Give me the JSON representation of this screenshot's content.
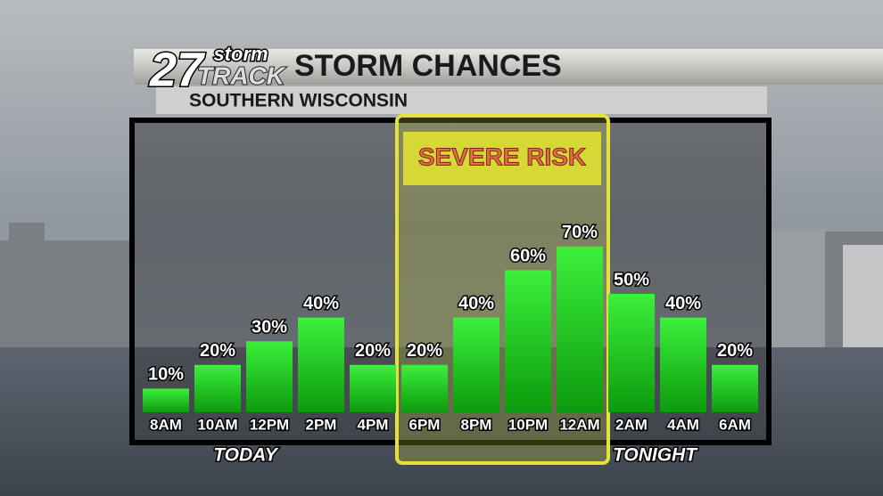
{
  "chart_data": {
    "type": "bar",
    "title": "STORM CHANCES",
    "subtitle": "SOUTHERN WISCONSIN",
    "logo": {
      "number": "27",
      "top": "storm",
      "bottom": "TRACK"
    },
    "categories": [
      "8AM",
      "10AM",
      "12PM",
      "2PM",
      "4PM",
      "6PM",
      "8PM",
      "10PM",
      "12AM",
      "2AM",
      "4AM",
      "6AM"
    ],
    "values": [
      10,
      20,
      30,
      40,
      20,
      20,
      40,
      60,
      70,
      50,
      40,
      20
    ],
    "value_labels": [
      "10%",
      "20%",
      "30%",
      "40%",
      "20%",
      "20%",
      "40%",
      "60%",
      "70%",
      "50%",
      "40%",
      "20%"
    ],
    "color": "#1fd01f",
    "ylim": [
      0,
      100
    ],
    "annotations": {
      "severe": "SEVERE RISK",
      "today": "TODAY",
      "tonight": "TONIGHT"
    }
  }
}
